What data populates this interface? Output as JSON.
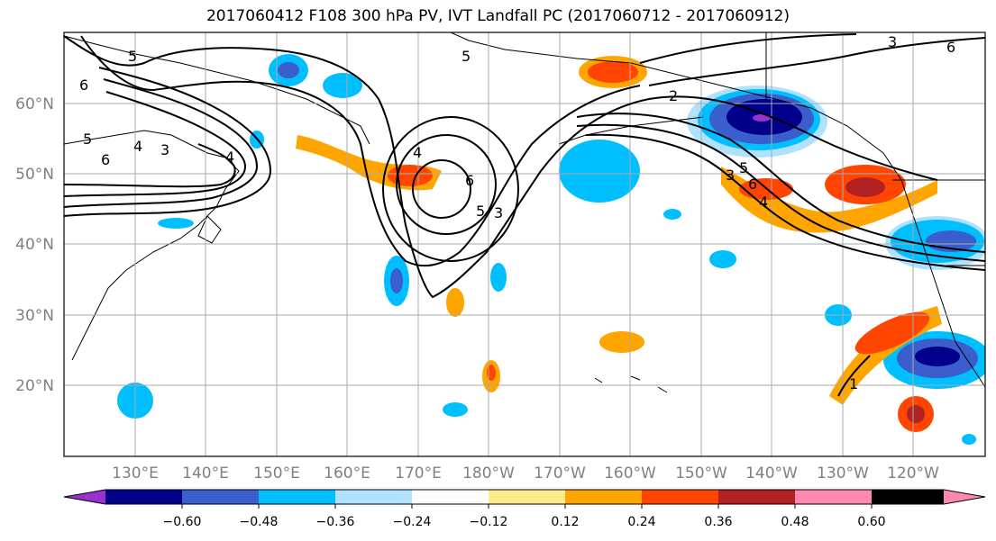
{
  "title": "2017060412 F108 300 hPa PV, IVT Landfall PC (2017060712 - 2017060912)",
  "lat_labels": [
    "60°N",
    "50°N",
    "40°N",
    "30°N",
    "20°N"
  ],
  "lon_labels": [
    "130°E",
    "140°E",
    "150°E",
    "160°E",
    "170°E",
    "180°W",
    "170°W",
    "160°W",
    "150°W",
    "140°W",
    "130°W",
    "120°W"
  ],
  "colorbar": {
    "colors": [
      "#9932cc",
      "#00008b",
      "#3a5fcd",
      "#00bfff",
      "#b0e2ff",
      "#ffffff",
      "#ffed8b",
      "#ffa500",
      "#ff4500",
      "#b22222",
      "#ff88b0"
    ],
    "tick_labels": [
      "−0.60",
      "−0.48",
      "−0.36",
      "−0.24",
      "−0.12",
      "0.12",
      "0.24",
      "0.36",
      "0.48",
      "0.60"
    ]
  },
  "contour_labels": [
    "6",
    "5",
    "4",
    "3",
    "5",
    "6",
    "4",
    "6",
    "5",
    "3",
    "2",
    "3",
    "5",
    "6",
    "4",
    "1",
    "6",
    "4",
    "5",
    "3"
  ]
}
